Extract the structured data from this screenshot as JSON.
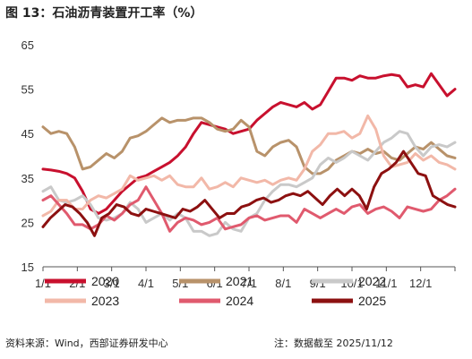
{
  "title": "图 13：石油沥青装置开工率（%）",
  "source": "资料来源：Wind，西部证券研发中心",
  "note": "注：数据截至 2025/11/12",
  "chart_data": {
    "type": "line",
    "title": "石油沥青装置开工率（%）",
    "xlabel": "",
    "ylabel": "",
    "x_ticks": [
      "1/1",
      "2/1",
      "3/1",
      "4/1",
      "5/1",
      "6/1",
      "7/1",
      "8/1",
      "9/1",
      "10/1",
      "11/1",
      "12/1"
    ],
    "y_ticks": [
      15,
      25,
      35,
      45,
      55,
      65
    ],
    "ylim": [
      15,
      65
    ],
    "xlim_weeks": [
      0,
      52
    ],
    "grid": false,
    "legend_position": "bottom",
    "series": [
      {
        "name": "2020",
        "color": "#c8102e",
        "values": [
          37,
          36.8,
          36.5,
          36,
          35,
          32,
          28,
          27,
          28,
          30,
          32,
          33.5,
          35,
          35.5,
          36.5,
          37.5,
          38.5,
          40,
          42,
          45,
          47.5,
          47,
          46.5,
          46,
          45,
          45.5,
          46,
          48,
          49.5,
          51,
          52,
          51.5,
          51,
          52,
          50.5,
          51.5,
          54.5,
          57.5,
          57.5,
          57,
          58,
          57.5,
          57.5,
          58,
          58.3,
          58,
          55.5,
          56,
          55.5,
          58.5,
          56,
          53.5,
          55
        ]
      },
      {
        "name": "2021",
        "color": "#b8926a",
        "values": [
          46.5,
          45,
          45.5,
          45,
          42,
          37,
          37.5,
          39,
          40.5,
          39.5,
          41,
          44,
          44.5,
          45.5,
          47,
          48.5,
          47.5,
          48,
          48,
          48.5,
          48.5,
          47.5,
          46,
          45.5,
          46,
          48,
          46.5,
          41,
          40,
          42,
          43,
          43.5,
          42,
          37.5,
          36,
          36,
          37,
          39,
          40,
          41,
          40.5,
          41.5,
          40.5,
          41,
          39.5,
          39,
          40.5,
          42,
          41.5,
          43,
          41.5,
          40,
          39.5
        ]
      },
      {
        "name": "2022",
        "color": "#c9c9c9",
        "values": [
          32,
          33,
          30,
          29.5,
          30,
          31,
          29,
          26,
          25.5,
          26,
          27,
          29.5,
          28,
          25,
          26,
          27,
          25.5,
          27,
          26,
          23,
          23,
          22,
          22.5,
          25,
          23.5,
          23,
          26,
          27,
          30,
          32,
          33.5,
          33.5,
          33,
          34,
          35,
          38,
          39.5,
          38.5,
          39.5,
          41,
          40,
          39,
          41,
          43,
          44,
          45.5,
          45,
          42,
          40,
          42,
          42.5,
          42,
          43
        ]
      },
      {
        "name": "2023",
        "color": "#f2b8a8",
        "values": [
          26.5,
          27.5,
          30,
          30,
          28,
          28,
          30,
          31,
          30.5,
          31.5,
          32.5,
          35.5,
          34.5,
          35,
          35.5,
          34.5,
          35.5,
          33.5,
          33,
          33,
          35,
          32.5,
          33,
          34,
          33,
          35,
          34.5,
          34,
          34.5,
          33.5,
          34.5,
          35,
          34.5,
          37,
          41,
          42.5,
          45,
          45,
          45.5,
          44,
          45,
          49,
          46,
          40,
          37.5,
          38,
          38.5,
          40.5,
          39,
          40,
          38.5,
          38,
          37
        ]
      },
      {
        "name": "2024",
        "color": "#e05a6e",
        "values": [
          30,
          31,
          29,
          27,
          24.5,
          24.5,
          23.5,
          24.5,
          26.5,
          25.5,
          27,
          29,
          30,
          33,
          30,
          27,
          23,
          25,
          26,
          25.5,
          24.5,
          25,
          26,
          23.5,
          24,
          24.5,
          26,
          26.5,
          25.5,
          26,
          26.5,
          26.5,
          25,
          28,
          27,
          26,
          27,
          28,
          27,
          28.5,
          29,
          27,
          28,
          28.5,
          27.5,
          26,
          28.5,
          28,
          27.5,
          28,
          30,
          31,
          32.5
        ]
      },
      {
        "name": "2025",
        "color": "#8c1010",
        "values": [
          24,
          26,
          27.5,
          29,
          28.5,
          27,
          25,
          22,
          26,
          27,
          29,
          28.5,
          27,
          26.5,
          28,
          27.5,
          27,
          26.5,
          26,
          28,
          27.5,
          28.5,
          30,
          28,
          26,
          27,
          27,
          28.5,
          29,
          30,
          30.5,
          29.5,
          30,
          31,
          31.5,
          31,
          32,
          30.5,
          29,
          31,
          32.5,
          31,
          32.5,
          31,
          28,
          33,
          36,
          37,
          38.5,
          41,
          38.5,
          36,
          35.5,
          31,
          30,
          29,
          28.5
        ]
      }
    ],
    "legend": [
      "2020",
      "2021",
      "2022",
      "2023",
      "2024",
      "2025"
    ]
  }
}
